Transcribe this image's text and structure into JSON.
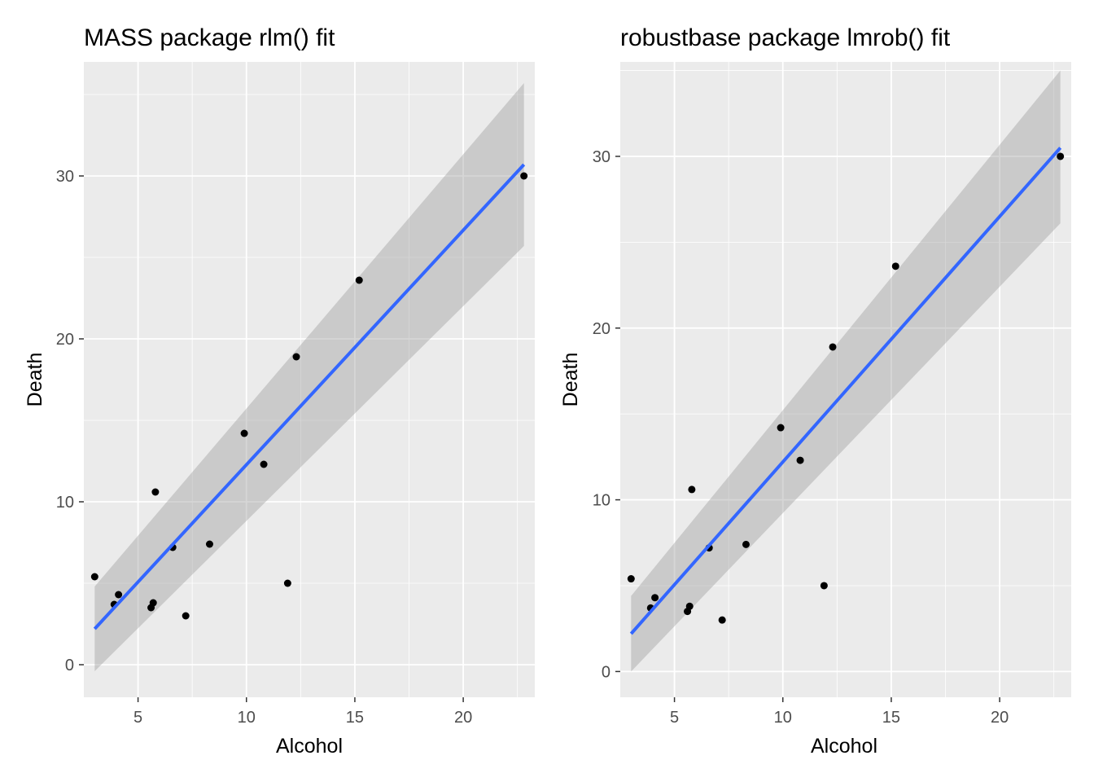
{
  "chart_data": [
    {
      "type": "scatter",
      "title": "MASS package rlm() fit",
      "xlabel": "Alcohol",
      "ylabel": "Death",
      "xlim": [
        2.5,
        23.3
      ],
      "ylim": [
        -2,
        37
      ],
      "x_ticks": [
        5,
        10,
        15,
        20
      ],
      "y_ticks": [
        0,
        10,
        20,
        30
      ],
      "grid": true,
      "legend": "none",
      "colors": {
        "panel": "#EBEBEB",
        "grid": "#FFFFFF",
        "points": "#000000",
        "fit_line": "#3366FF",
        "ribbon": "#999999"
      },
      "points": {
        "x": [
          3.0,
          3.9,
          4.1,
          5.6,
          5.7,
          5.8,
          6.6,
          7.2,
          8.3,
          9.9,
          10.8,
          11.9,
          12.3,
          15.2,
          22.8
        ],
        "y": [
          5.4,
          3.7,
          4.3,
          3.5,
          3.8,
          10.6,
          7.2,
          3.0,
          7.4,
          14.2,
          12.3,
          5.0,
          18.9,
          23.6,
          30.0
        ]
      },
      "fit": {
        "x": [
          3.0,
          22.8
        ],
        "y": [
          2.2,
          30.7
        ],
        "ci_lower": [
          -0.4,
          25.7
        ],
        "ci_upper": [
          4.8,
          35.7
        ]
      }
    },
    {
      "type": "scatter",
      "title": "robustbase package lmrob() fit",
      "xlabel": "Alcohol",
      "ylabel": "Death",
      "xlim": [
        2.5,
        23.3
      ],
      "ylim": [
        -1.5,
        35.5
      ],
      "x_ticks": [
        5,
        10,
        15,
        20
      ],
      "y_ticks": [
        0,
        10,
        20,
        30
      ],
      "grid": true,
      "legend": "none",
      "colors": {
        "panel": "#EBEBEB",
        "grid": "#FFFFFF",
        "points": "#000000",
        "fit_line": "#3366FF",
        "ribbon": "#999999"
      },
      "points": {
        "x": [
          3.0,
          3.9,
          4.1,
          5.6,
          5.7,
          5.8,
          6.6,
          7.2,
          8.3,
          9.9,
          10.8,
          11.9,
          12.3,
          15.2,
          22.8
        ],
        "y": [
          5.4,
          3.7,
          4.3,
          3.5,
          3.8,
          10.6,
          7.2,
          3.0,
          7.4,
          14.2,
          12.3,
          5.0,
          18.9,
          23.6,
          30.0
        ]
      },
      "fit": {
        "x": [
          3.0,
          22.8
        ],
        "y": [
          2.2,
          30.5
        ],
        "ci_lower": [
          0.0,
          26.1
        ],
        "ci_upper": [
          4.4,
          35.0
        ]
      }
    }
  ]
}
